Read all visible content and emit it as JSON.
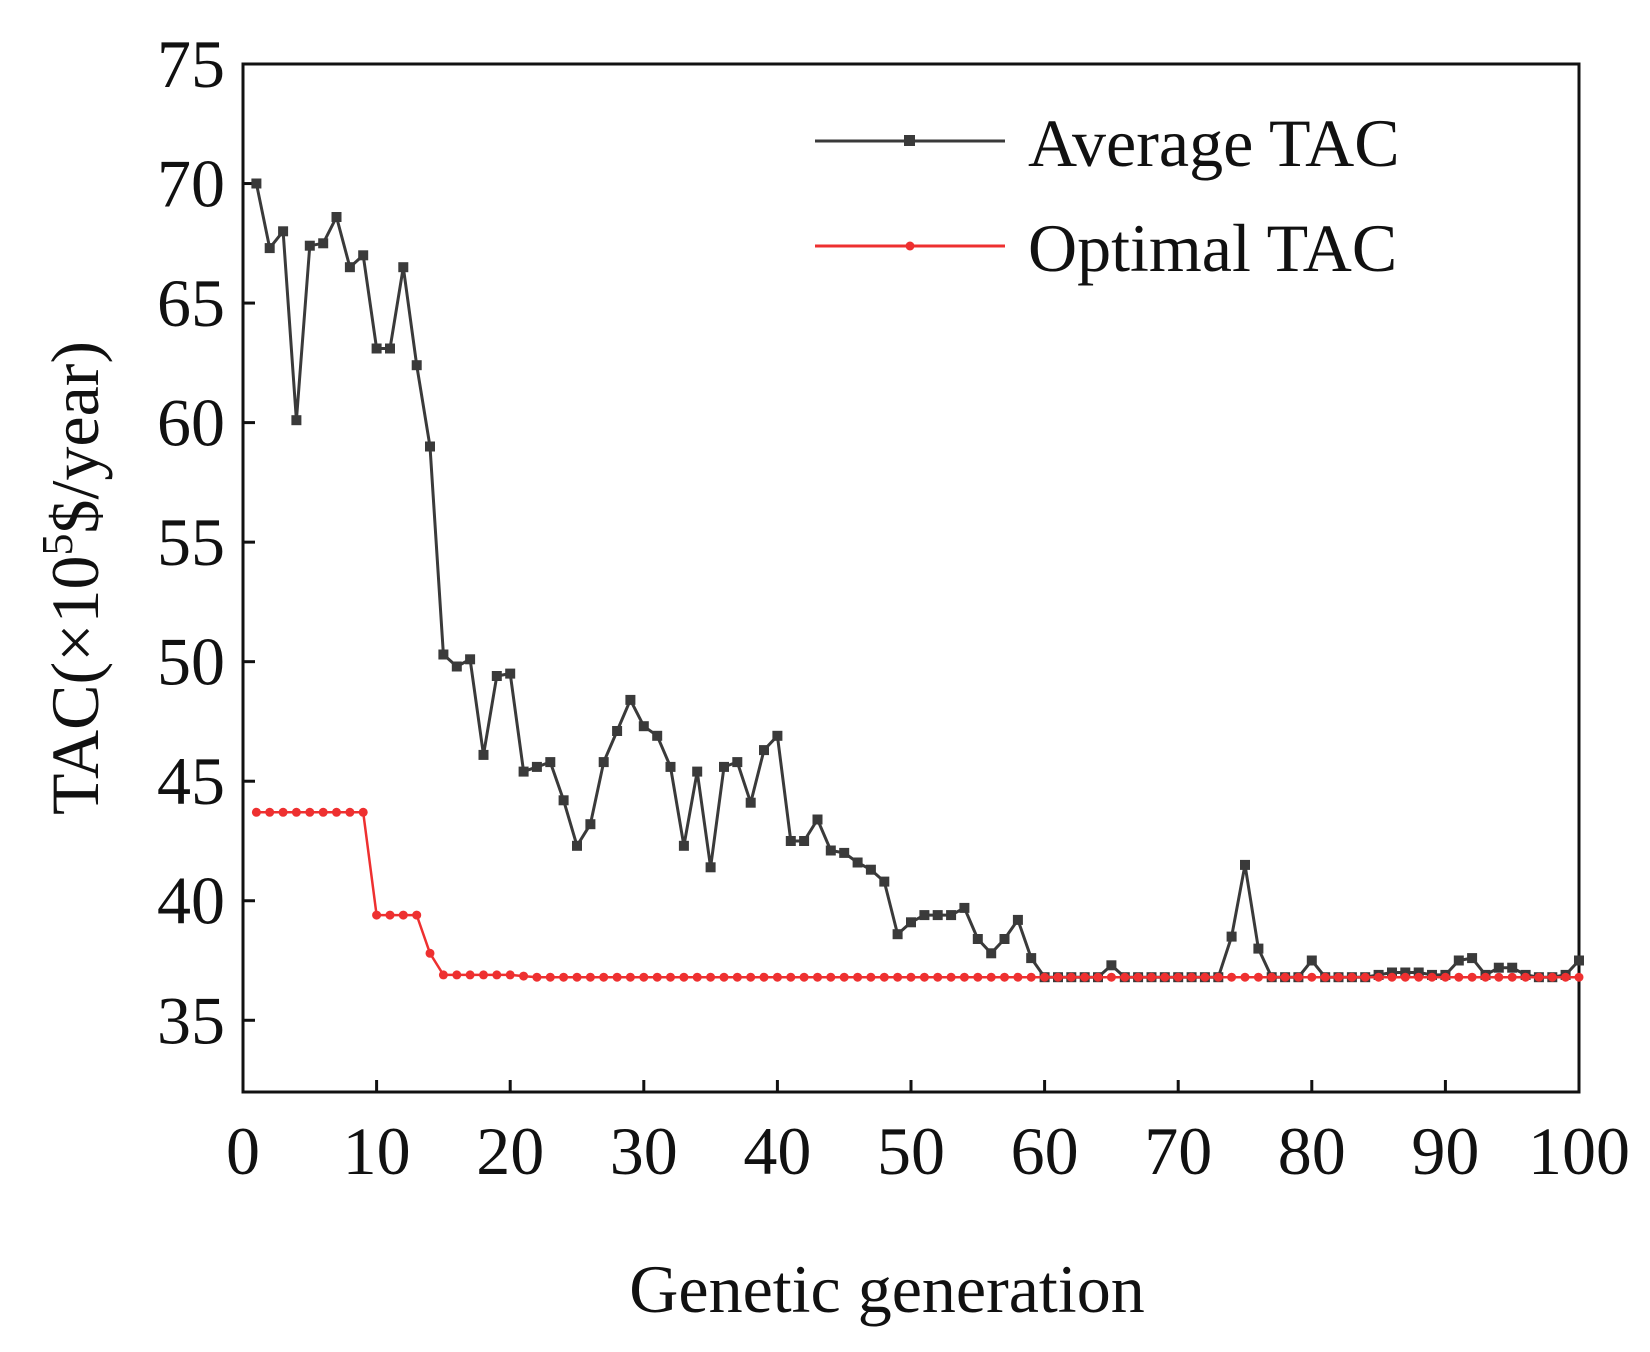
{
  "chart_data": {
    "type": "line",
    "xlabel": "Genetic generation",
    "ylabel": "TAC(×10",
    "ylabel_sup": "5",
    "ylabel_suffix": "$/year)",
    "xlim": [
      0,
      100
    ],
    "ylim": [
      32,
      75
    ],
    "xticks": [
      0,
      10,
      20,
      30,
      40,
      50,
      60,
      70,
      80,
      90,
      100
    ],
    "yticks": [
      35,
      40,
      45,
      50,
      55,
      60,
      65,
      70,
      75
    ],
    "grid": false,
    "legend_position": "top-right",
    "series": [
      {
        "name": "Average TAC",
        "color": "#3a3a3a",
        "marker": "square",
        "x": [
          1,
          2,
          3,
          4,
          5,
          6,
          7,
          8,
          9,
          10,
          11,
          12,
          13,
          14,
          15,
          16,
          17,
          18,
          19,
          20,
          21,
          22,
          23,
          24,
          25,
          26,
          27,
          28,
          29,
          30,
          31,
          32,
          33,
          34,
          35,
          36,
          37,
          38,
          39,
          40,
          41,
          42,
          43,
          44,
          45,
          46,
          47,
          48,
          49,
          50,
          51,
          52,
          53,
          54,
          55,
          56,
          57,
          58,
          59,
          60,
          61,
          62,
          63,
          64,
          65,
          66,
          67,
          68,
          69,
          70,
          71,
          72,
          73,
          74,
          75,
          76,
          77,
          78,
          79,
          80,
          81,
          82,
          83,
          84,
          85,
          86,
          87,
          88,
          89,
          90,
          91,
          92,
          93,
          94,
          95,
          96,
          97,
          98,
          99,
          100
        ],
        "y": [
          70,
          67.3,
          68,
          60.1,
          67.4,
          67.5,
          68.6,
          66.5,
          67,
          63.1,
          63.1,
          66.5,
          62.4,
          59,
          50.3,
          49.8,
          50.1,
          46.1,
          49.4,
          49.5,
          45.4,
          45.6,
          45.8,
          44.2,
          42.3,
          43.2,
          45.8,
          47.1,
          48.4,
          47.3,
          46.9,
          45.6,
          42.3,
          45.4,
          41.4,
          45.6,
          45.8,
          44.1,
          46.3,
          46.9,
          42.5,
          42.5,
          43.4,
          42.1,
          42,
          41.6,
          41.3,
          40.8,
          38.6,
          39.1,
          39.4,
          39.4,
          39.4,
          39.7,
          38.4,
          37.8,
          38.4,
          39.2,
          37.6,
          36.8,
          36.8,
          36.8,
          36.8,
          36.8,
          37.3,
          36.8,
          36.8,
          36.8,
          36.8,
          36.8,
          36.8,
          36.8,
          36.8,
          38.5,
          41.5,
          38,
          36.8,
          36.8,
          36.8,
          37.5,
          36.8,
          36.8,
          36.8,
          36.8,
          36.9,
          37,
          37,
          37,
          36.9,
          36.9,
          37.5,
          37.6,
          36.9,
          37.2,
          37.2,
          36.9,
          36.8,
          36.8,
          36.9,
          37.5
        ]
      },
      {
        "name": "Optimal TAC",
        "color": "#ee3030",
        "marker": "circle",
        "x": [
          1,
          2,
          3,
          4,
          5,
          6,
          7,
          8,
          9,
          10,
          11,
          12,
          13,
          14,
          15,
          16,
          17,
          18,
          19,
          20,
          21,
          22,
          23,
          24,
          25,
          26,
          27,
          28,
          29,
          30,
          31,
          32,
          33,
          34,
          35,
          36,
          37,
          38,
          39,
          40,
          41,
          42,
          43,
          44,
          45,
          46,
          47,
          48,
          49,
          50,
          51,
          52,
          53,
          54,
          55,
          56,
          57,
          58,
          59,
          60,
          61,
          62,
          63,
          64,
          65,
          66,
          67,
          68,
          69,
          70,
          71,
          72,
          73,
          74,
          75,
          76,
          77,
          78,
          79,
          80,
          81,
          82,
          83,
          84,
          85,
          86,
          87,
          88,
          89,
          90,
          91,
          92,
          93,
          94,
          95,
          96,
          97,
          98,
          99,
          100
        ],
        "y": [
          43.7,
          43.7,
          43.7,
          43.7,
          43.7,
          43.7,
          43.7,
          43.7,
          43.7,
          39.4,
          39.4,
          39.4,
          39.4,
          37.8,
          36.9,
          36.9,
          36.9,
          36.9,
          36.9,
          36.9,
          36.85,
          36.8,
          36.8,
          36.8,
          36.8,
          36.8,
          36.8,
          36.8,
          36.8,
          36.8,
          36.8,
          36.8,
          36.8,
          36.8,
          36.8,
          36.8,
          36.8,
          36.8,
          36.8,
          36.8,
          36.8,
          36.8,
          36.8,
          36.8,
          36.8,
          36.8,
          36.8,
          36.8,
          36.8,
          36.8,
          36.8,
          36.8,
          36.8,
          36.8,
          36.8,
          36.8,
          36.8,
          36.8,
          36.8,
          36.8,
          36.8,
          36.8,
          36.8,
          36.8,
          36.8,
          36.8,
          36.8,
          36.8,
          36.8,
          36.8,
          36.8,
          36.8,
          36.8,
          36.8,
          36.8,
          36.8,
          36.8,
          36.8,
          36.8,
          36.8,
          36.8,
          36.8,
          36.8,
          36.8,
          36.8,
          36.8,
          36.8,
          36.8,
          36.8,
          36.8,
          36.8,
          36.8,
          36.8,
          36.8,
          36.8,
          36.8,
          36.8,
          36.8,
          36.8,
          36.8
        ]
      }
    ]
  }
}
